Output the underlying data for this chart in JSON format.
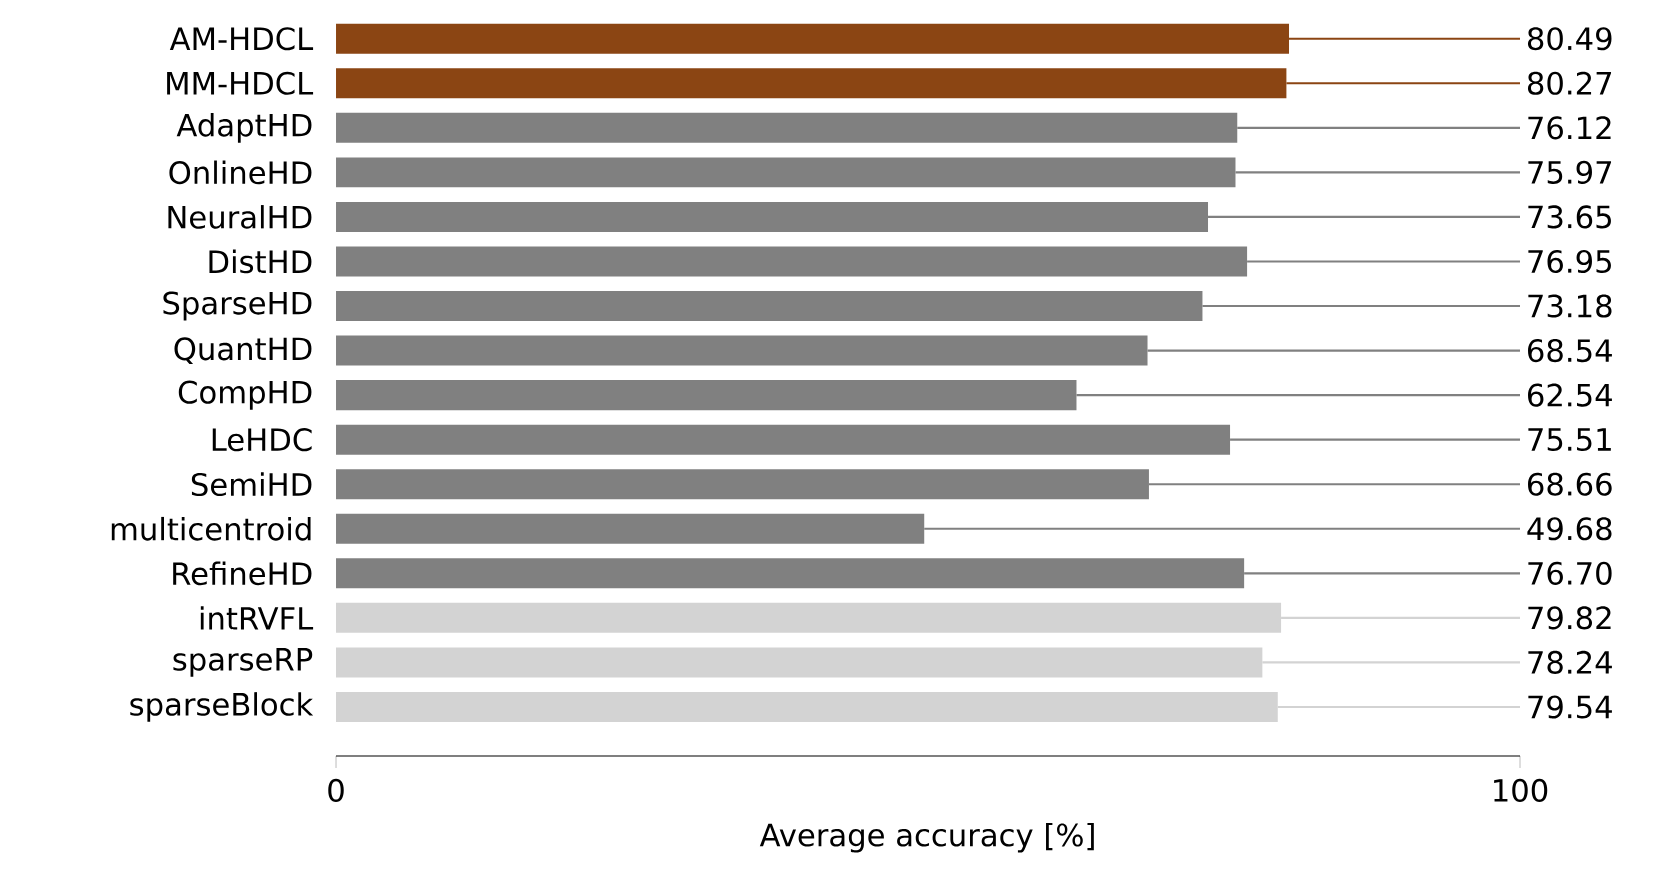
{
  "chart_data": {
    "type": "bar",
    "orientation": "horizontal",
    "xlabel": "Average accuracy [%]",
    "categories": [
      "AM-HDCL",
      "MM-HDCL",
      "AdaptHD",
      "OnlineHD",
      "NeuralHD",
      "DistHD",
      "SparseHD",
      "QuantHD",
      "CompHD",
      "LeHDC",
      "SemiHD",
      "multicentroid",
      "RefineHD",
      "intRVFL",
      "sparseRP",
      "sparseBlock"
    ],
    "values": [
      80.49,
      80.27,
      76.12,
      75.97,
      73.65,
      76.95,
      73.18,
      68.54,
      62.54,
      75.51,
      68.66,
      49.68,
      76.7,
      79.82,
      78.24,
      79.54
    ],
    "value_labels": [
      "80.49",
      "80.27",
      "76.12",
      "75.97",
      "73.65",
      "76.95",
      "73.18",
      "68.54",
      "62.54",
      "75.51",
      "68.66",
      "49.68",
      "76.70",
      "79.82",
      "78.24",
      "79.54"
    ],
    "colors": [
      "#8b4513",
      "#8b4513",
      "#808080",
      "#808080",
      "#808080",
      "#808080",
      "#808080",
      "#808080",
      "#808080",
      "#808080",
      "#808080",
      "#808080",
      "#808080",
      "#d3d3d3",
      "#d3d3d3",
      "#d3d3d3"
    ],
    "xlim": [
      0,
      100
    ],
    "xticks": [
      0,
      100
    ]
  }
}
